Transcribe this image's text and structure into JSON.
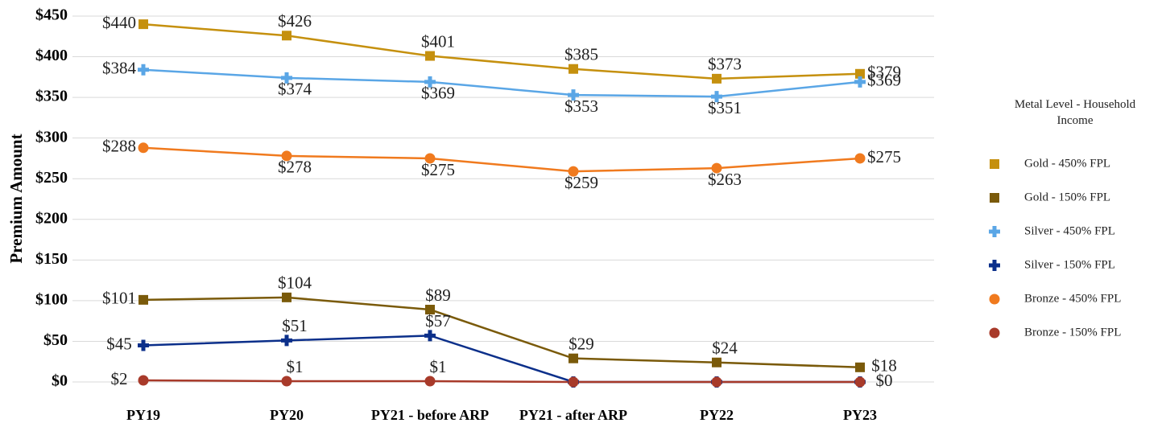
{
  "chart_data": {
    "type": "line",
    "y_label": "Premium Amount",
    "categories": [
      "PY19",
      "PY20",
      "PY21 - before ARP",
      "PY21 - after ARP",
      "PY22",
      "PY23"
    ],
    "ylim": [
      0,
      450
    ],
    "yticks": [
      {
        "value": 0,
        "label": "$0"
      },
      {
        "value": 50,
        "label": "$50"
      },
      {
        "value": 100,
        "label": "$100"
      },
      {
        "value": 150,
        "label": "$150"
      },
      {
        "value": 200,
        "label": "$200"
      },
      {
        "value": 250,
        "label": "$250"
      },
      {
        "value": 300,
        "label": "$300"
      },
      {
        "value": 350,
        "label": "$350"
      },
      {
        "value": 400,
        "label": "$400"
      },
      {
        "value": 450,
        "label": "$450"
      }
    ],
    "grid": true,
    "legend_title": "Metal Level - Household Income",
    "legend_position": "right",
    "series": [
      {
        "name": "Gold - 450% FPL",
        "color": "#c5900e",
        "marker": "square",
        "values": [
          440,
          426,
          401,
          385,
          373,
          379
        ],
        "value_labels": [
          "$440",
          "$426",
          "$401",
          "$385",
          "$373",
          "$379"
        ]
      },
      {
        "name": "Gold - 150% FPL",
        "color": "#7a5a0a",
        "marker": "square",
        "values": [
          101,
          104,
          89,
          29,
          24,
          18
        ],
        "value_labels": [
          "$101",
          "$104",
          "$89",
          "$29",
          "$24",
          "$18"
        ]
      },
      {
        "name": "Silver - 450% FPL",
        "color": "#5aa6e6",
        "marker": "cross",
        "values": [
          384,
          374,
          369,
          353,
          351,
          369
        ],
        "value_labels": [
          "$384",
          "$374",
          "$369",
          "$353",
          "$351",
          "$369"
        ]
      },
      {
        "name": "Silver - 150% FPL",
        "color": "#0b2f8a",
        "marker": "cross",
        "values": [
          45,
          51,
          57,
          0,
          0,
          0
        ],
        "value_labels": [
          "$45",
          "$51",
          "$57",
          null,
          null,
          null
        ]
      },
      {
        "name": "Bronze - 450% FPL",
        "color": "#f07a1e",
        "marker": "circle",
        "values": [
          288,
          278,
          275,
          259,
          263,
          275
        ],
        "value_labels": [
          "$288",
          "$278",
          "$275",
          "$259",
          "$263",
          "$275"
        ]
      },
      {
        "name": "Bronze - 150% FPL",
        "color": "#a83a2a",
        "marker": "circle",
        "values": [
          2,
          1,
          1,
          0,
          0,
          0
        ],
        "value_labels": [
          "$2",
          "$1",
          "$1",
          null,
          null,
          "$0"
        ]
      }
    ]
  }
}
